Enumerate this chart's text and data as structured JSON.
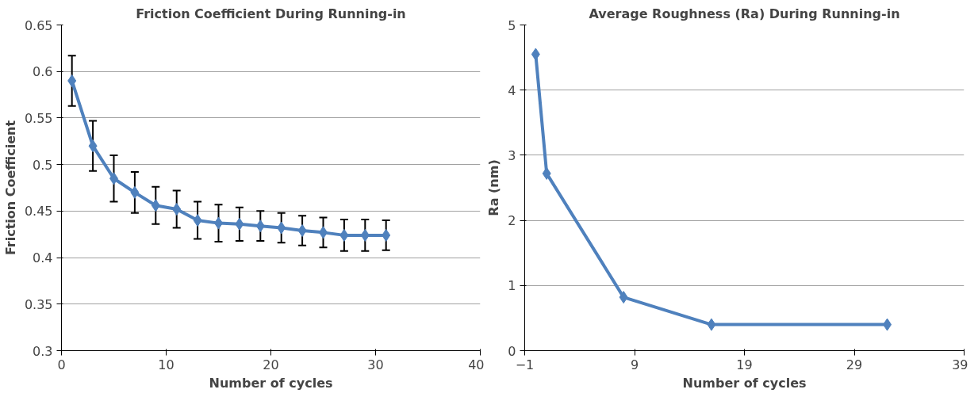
{
  "chart_data": [
    {
      "type": "line",
      "title": "Friction Coefficient During Running-in",
      "xlabel": "Number of cycles",
      "ylabel": "Friction Coefficient",
      "x": [
        1,
        3,
        5,
        7,
        9,
        11,
        13,
        15,
        17,
        19,
        21,
        23,
        25,
        27,
        29,
        31
      ],
      "series": [
        {
          "color": "#4f81bd",
          "values": [
            0.59,
            0.52,
            0.485,
            0.47,
            0.456,
            0.452,
            0.44,
            0.437,
            0.436,
            0.434,
            0.432,
            0.429,
            0.427,
            0.424,
            0.424,
            0.424
          ],
          "errors": [
            0.027,
            0.027,
            0.025,
            0.022,
            0.02,
            0.02,
            0.02,
            0.02,
            0.018,
            0.016,
            0.016,
            0.016,
            0.016,
            0.017,
            0.017,
            0.016
          ]
        }
      ],
      "xlim": [
        0,
        40
      ],
      "xticks": [
        0,
        10,
        20,
        30,
        40
      ],
      "ylim": [
        0.3,
        0.65
      ],
      "yticks": [
        0.3,
        0.35,
        0.4,
        0.45,
        0.5,
        0.55,
        0.6,
        0.65
      ],
      "grid": "y",
      "marker": "diamond"
    },
    {
      "type": "line",
      "title": "Average Roughness (Ra) During Running-in",
      "xlabel": "Number of cycles",
      "ylabel": "Ra (nm)",
      "x": [
        0,
        1,
        8,
        16,
        32
      ],
      "series": [
        {
          "color": "#4f81bd",
          "values": [
            4.55,
            2.72,
            0.82,
            0.4,
            0.4
          ]
        }
      ],
      "xlim": [
        -1,
        39
      ],
      "xticks": [
        -1,
        9,
        19,
        29,
        39
      ],
      "ylim": [
        0,
        5
      ],
      "yticks": [
        0,
        1,
        2,
        3,
        4,
        5
      ],
      "grid": "y",
      "marker": "diamond"
    }
  ]
}
